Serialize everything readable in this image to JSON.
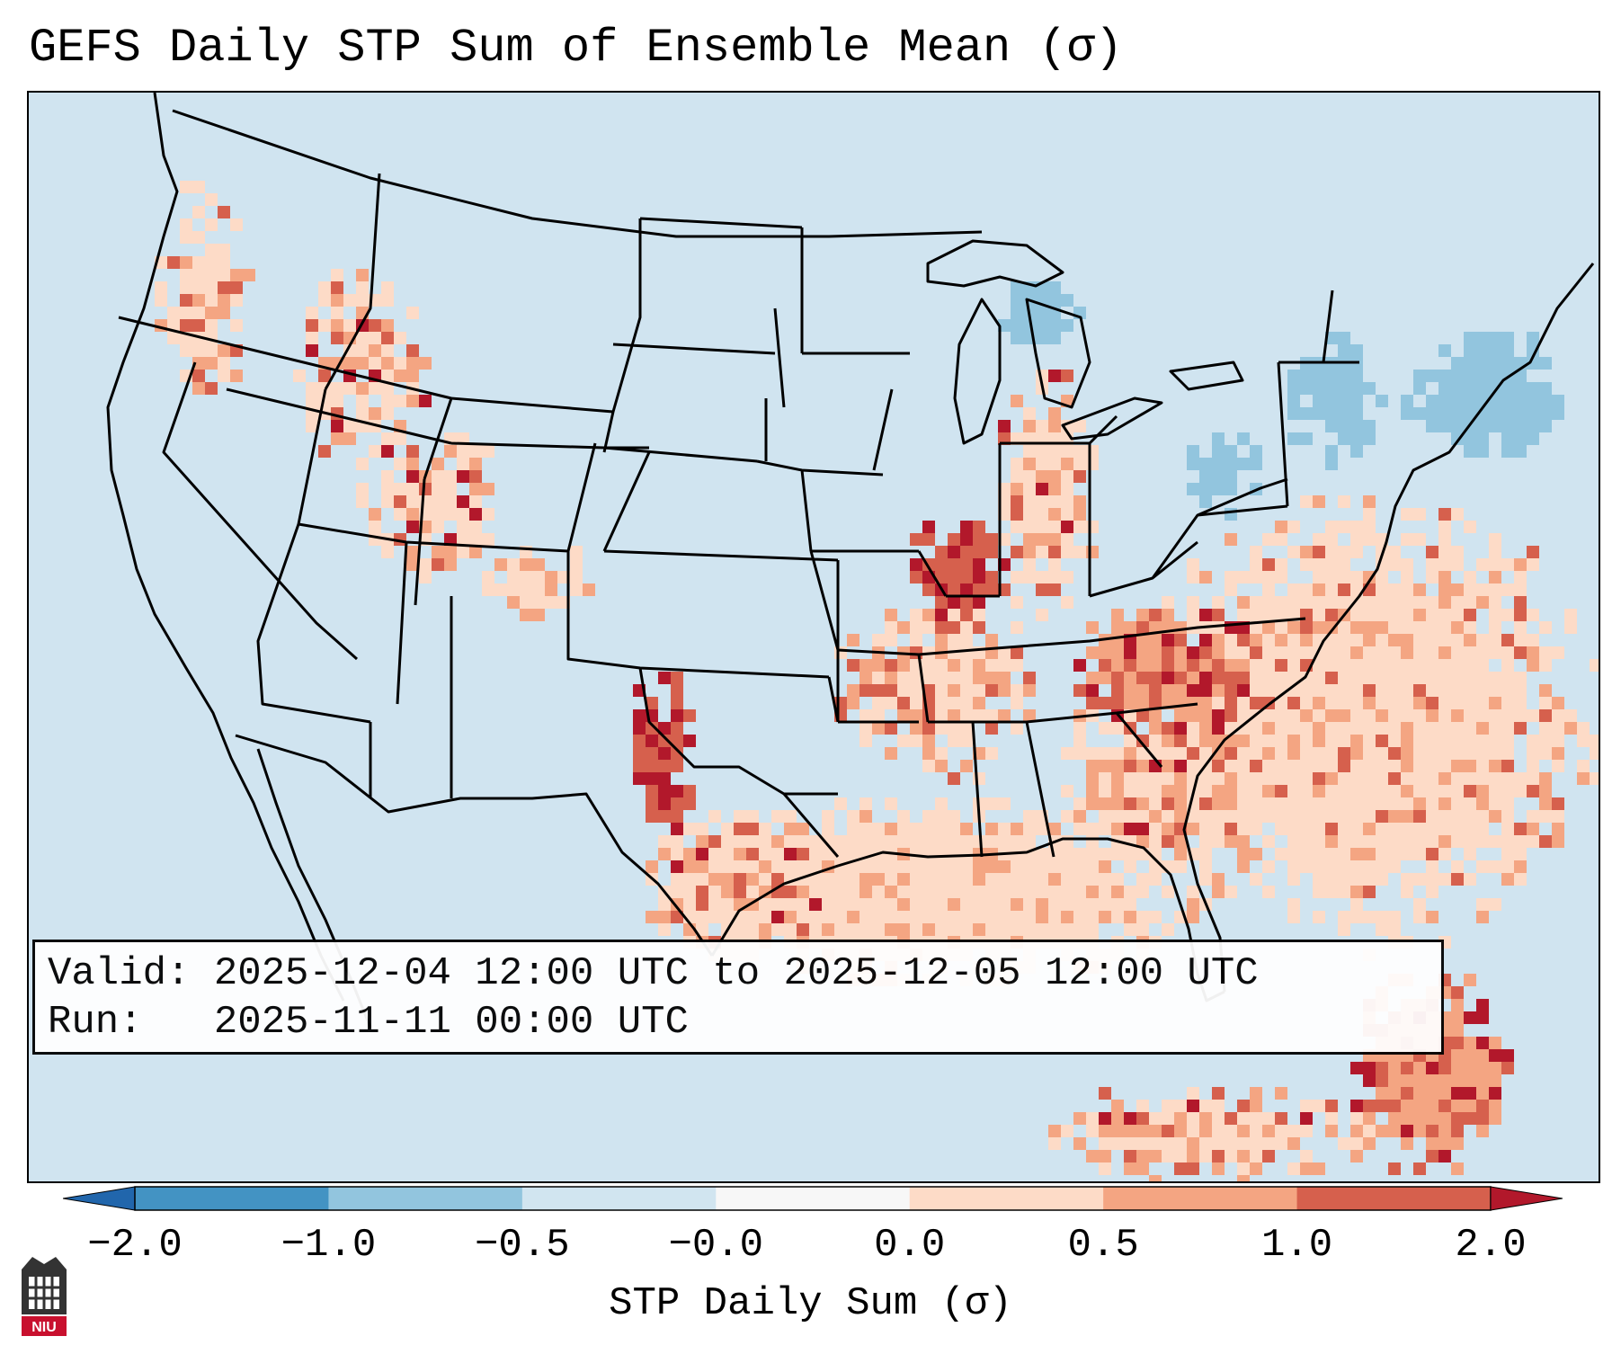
{
  "title": "GEFS Daily STP Sum of Ensemble Mean (σ)",
  "info": {
    "valid_label": "Valid:",
    "valid_value": "2025-12-04 12:00 UTC to 2025-12-05 12:00 UTC",
    "run_label": "Run:",
    "run_value": "2025-11-11 00:00 UTC"
  },
  "colorbar": {
    "label": "STP Daily Sum (σ)",
    "ticks": [
      "−2.0",
      "−1.0",
      "−0.5",
      "−0.0",
      "0.0",
      "0.5",
      "1.0",
      "2.0"
    ],
    "bins": [
      {
        "from": -2.0,
        "to": -1.0,
        "color": "#4393c3"
      },
      {
        "from": -1.0,
        "to": -0.5,
        "color": "#92c5de"
      },
      {
        "from": -0.5,
        "to": -0.0,
        "color": "#d1e5f0"
      },
      {
        "from": -0.0,
        "to": 0.0,
        "color": "#f7f7f7"
      },
      {
        "from": 0.0,
        "to": 0.5,
        "color": "#fddbc7"
      },
      {
        "from": 0.5,
        "to": 1.0,
        "color": "#f4a582"
      },
      {
        "from": 1.0,
        "to": 2.0,
        "color": "#d6604d"
      }
    ],
    "under_color": "#2166ac",
    "over_color": "#b2182b"
  },
  "colors": {
    "background": "#d0e4f0",
    "light_red": "#fddbc7",
    "mid_red": "#f4a582",
    "strong_red": "#d6604d",
    "dark_red": "#b2182b",
    "light_blue": "#92c5de"
  },
  "logo": {
    "text": "NIU"
  }
}
